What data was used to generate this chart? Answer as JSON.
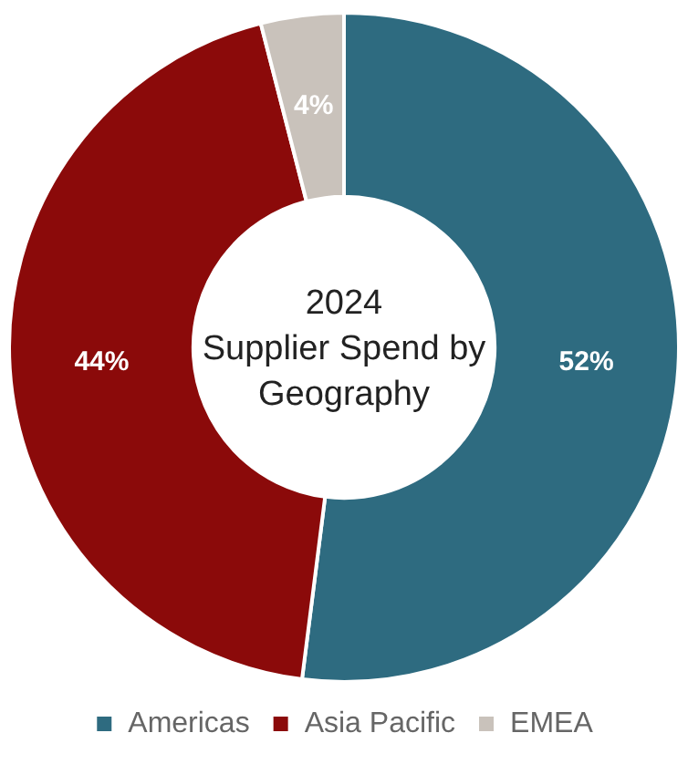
{
  "chart_data": {
    "type": "donut",
    "title": "2024\nSupplier Spend by\nGeography",
    "categories": [
      "Americas",
      "Asia Pacific",
      "EMEA"
    ],
    "values": [
      52,
      44,
      4
    ],
    "colors": [
      "#2e6b80",
      "#8b0a0a",
      "#c9c2bb"
    ],
    "value_labels": [
      "52%",
      "44%",
      "4%"
    ],
    "legend": "bottom"
  }
}
